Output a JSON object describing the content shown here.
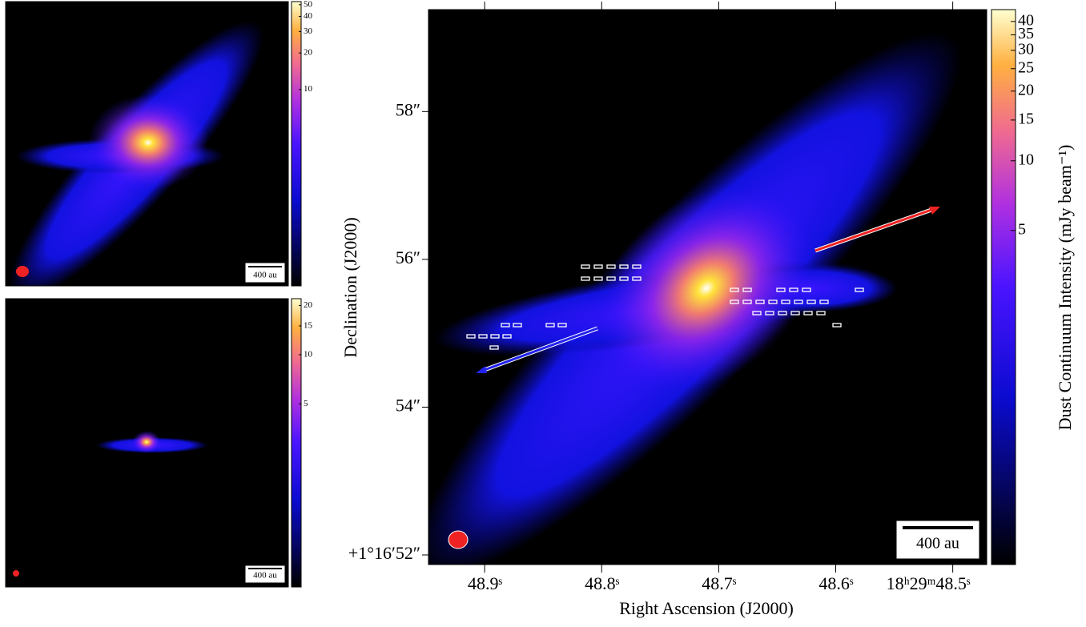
{
  "chart_data": [
    {
      "type": "image",
      "xlabel": "Right Ascension (J2000)",
      "ylabel": "Declination (J2000)",
      "xlim": [
        48.948,
        48.471
      ],
      "ylim": [
        51.87,
        59.38
      ],
      "xticks": [
        {
          "value": 48.9,
          "label": "48.9ˢ"
        },
        {
          "value": 48.8,
          "label": "48.8ˢ"
        },
        {
          "value": 48.7,
          "label": "48.7ˢ"
        },
        {
          "value": 48.6,
          "label": "48.6ˢ"
        },
        {
          "value": 48.5,
          "label": "18ʰ29ᵐ48.5ˢ"
        }
      ],
      "yticks": [
        {
          "value": 52,
          "label": "+1°16′52″"
        },
        {
          "value": 54,
          "label": "54″"
        },
        {
          "value": 56,
          "label": "56″"
        },
        {
          "value": 58,
          "label": "58″"
        }
      ],
      "colorbar_label": "Dust Continuum Intensity (mJy beam⁻¹)",
      "cscale": "log",
      "clim": [
        0.18,
        45
      ],
      "cticks": [
        5,
        10,
        15,
        20,
        25,
        30,
        35,
        40
      ],
      "scale_bar": "400 au"
    },
    {
      "type": "image",
      "cscale": "log",
      "clim": [
        0.24,
        53
      ],
      "cticks": [
        10,
        20,
        30,
        40,
        50
      ],
      "scale_bar": "400 au"
    },
    {
      "type": "image",
      "cscale": "log",
      "clim": [
        0.38,
        22
      ],
      "cticks": [
        5,
        10,
        15,
        20
      ],
      "scale_bar": "400 au"
    }
  ]
}
